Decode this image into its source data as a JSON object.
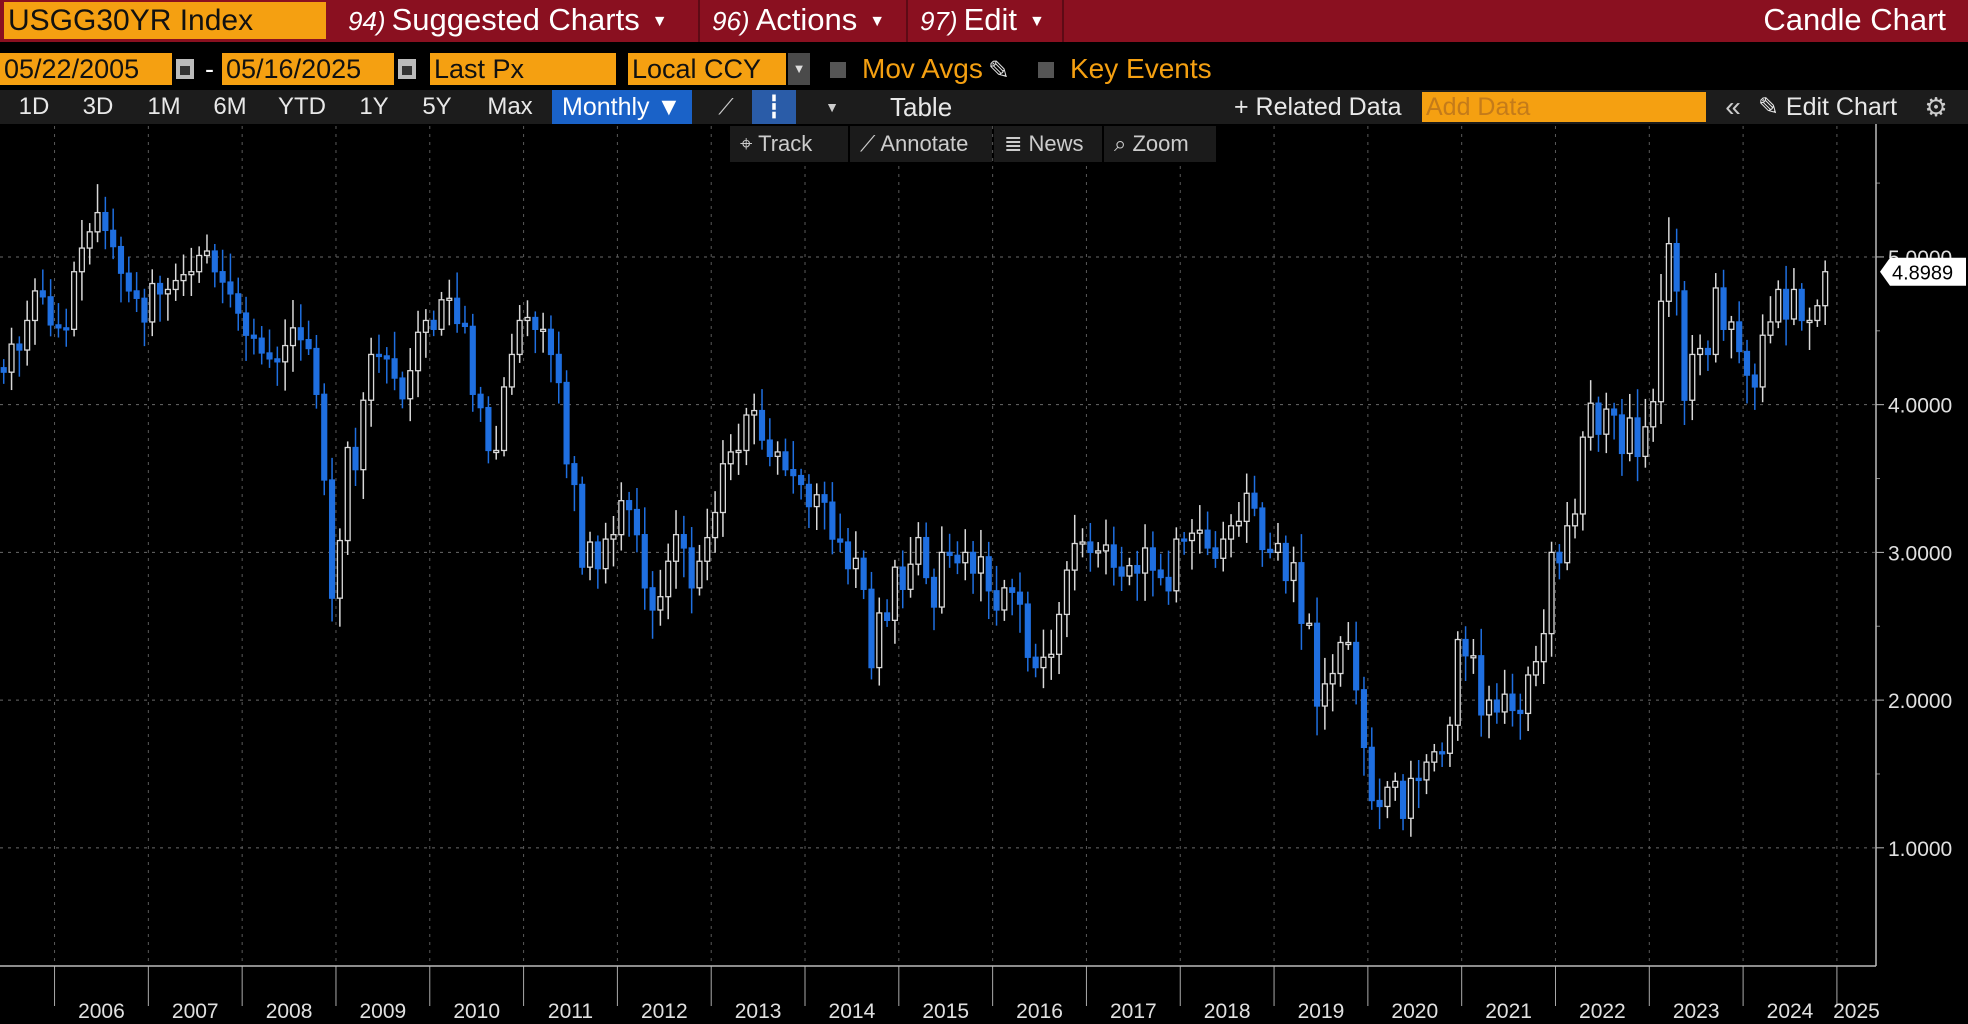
{
  "toolbar": {
    "ticker": "USGG30YR Index",
    "suggested_num": "94)",
    "suggested_label": "Suggested Charts",
    "actions_num": "96)",
    "actions_label": "Actions",
    "edit_num": "97)",
    "edit_label": "Edit",
    "chart_type": "Candle Chart"
  },
  "controls": {
    "start_date": "05/22/2005",
    "end_date": "05/16/2025",
    "field": "Last Px",
    "currency": "Local CCY",
    "mov_avgs": "Mov Avgs",
    "key_events": "Key Events"
  },
  "ranges": [
    "1D",
    "3D",
    "1M",
    "6M",
    "YTD",
    "1Y",
    "5Y",
    "Max"
  ],
  "periodicity": "Monthly ▼",
  "table_label": "Table",
  "related_label": "+ Related Data",
  "add_data_placeholder": "Add Data",
  "edit_chart_label": "Edit Chart",
  "chart_tools": [
    "Track",
    "Annotate",
    "News",
    "Zoom"
  ],
  "colors": {
    "up": "#d9d9d9",
    "down": "#1f6fe0",
    "accent": "#f5a011",
    "header": "#8a1020"
  },
  "chart_data": {
    "type": "candlestick",
    "title": "",
    "xlabel": "",
    "ylabel": "",
    "x_range": [
      "2005-05",
      "2025-05"
    ],
    "ylim": [
      0.2,
      5.9
    ],
    "y_ticks": [
      "1.0000",
      "2.0000",
      "3.0000",
      "4.0000",
      "5.0000"
    ],
    "x_ticks": [
      "2006",
      "2007",
      "2008",
      "2009",
      "2010",
      "2011",
      "2012",
      "2013",
      "2014",
      "2015",
      "2016",
      "2017",
      "2018",
      "2019",
      "2020",
      "2021",
      "2022",
      "2023",
      "2024",
      "2025"
    ],
    "last_value_label": "4.8989",
    "grid": true,
    "series": [
      {
        "frequency": "monthly",
        "start": "2005-05",
        "close": [
          4.25,
          4.22,
          4.41,
          4.37,
          4.57,
          4.77,
          4.73,
          4.54,
          4.52,
          4.51,
          4.9,
          5.06,
          5.17,
          5.3,
          5.18,
          5.07,
          4.89,
          4.77,
          4.72,
          4.56,
          4.82,
          4.75,
          4.78,
          4.84,
          4.88,
          4.9,
          5.01,
          5.04,
          4.9,
          4.83,
          4.75,
          4.62,
          4.47,
          4.45,
          4.35,
          4.31,
          4.29,
          4.4,
          4.52,
          4.44,
          4.38,
          4.07,
          3.49,
          2.69,
          3.08,
          3.71,
          3.56,
          4.03,
          4.34,
          4.33,
          4.31,
          4.18,
          4.04,
          4.23,
          4.49,
          4.57,
          4.51,
          4.71,
          4.72,
          4.55,
          4.53,
          4.07,
          3.98,
          3.69,
          3.69,
          4.12,
          4.34,
          4.57,
          4.59,
          4.51,
          4.51,
          4.34,
          4.15,
          3.6,
          3.46,
          2.9,
          3.07,
          2.89,
          3.09,
          3.12,
          3.35,
          3.29,
          3.12,
          2.76,
          2.61,
          2.7,
          2.94,
          3.12,
          3.03,
          2.76,
          2.94,
          3.1,
          3.27,
          3.6,
          3.68,
          3.69,
          3.93,
          3.96,
          3.76,
          3.65,
          3.68,
          3.56,
          3.52,
          3.46,
          3.31,
          3.39,
          3.34,
          3.09,
          3.07,
          2.89,
          2.96,
          2.75,
          2.22,
          2.59,
          2.54,
          2.9,
          2.75,
          2.92,
          3.1,
          2.83,
          2.63,
          3.0,
          2.98,
          2.93,
          3.0,
          2.86,
          2.97,
          2.74,
          2.61,
          2.76,
          2.73,
          2.65,
          2.29,
          2.22,
          2.29,
          2.31,
          2.58,
          2.88,
          3.06,
          3.07,
          3.0,
          3.01,
          3.05,
          2.9,
          2.84,
          2.91,
          2.86,
          3.03,
          2.88,
          2.83,
          2.74,
          3.09,
          3.08,
          3.13,
          3.15,
          3.03,
          2.96,
          3.09,
          3.18,
          3.21,
          3.4,
          3.3,
          3.02,
          3.0,
          3.06,
          2.81,
          2.93,
          2.52,
          2.52,
          1.96,
          2.11,
          2.18,
          2.39,
          2.39,
          2.07,
          1.68,
          1.32,
          1.28,
          1.41,
          1.45,
          1.2,
          1.47,
          1.46,
          1.58,
          1.65,
          1.64,
          1.83,
          2.41,
          2.3,
          2.3,
          1.9,
          2.0,
          1.92,
          2.04,
          1.93,
          1.91,
          2.17,
          2.26,
          2.45,
          3.0,
          2.93,
          3.18,
          3.26,
          3.78,
          4.01,
          3.8,
          3.97,
          3.93,
          3.67,
          3.91,
          3.65,
          3.85,
          4.02,
          4.7,
          5.09,
          4.77,
          4.03,
          4.34,
          4.38,
          4.34,
          4.79,
          4.51,
          4.56,
          4.36,
          4.2,
          4.12,
          4.47,
          4.56,
          4.78,
          4.58,
          4.78,
          4.57,
          4.57,
          4.67,
          4.9
        ]
      }
    ]
  }
}
